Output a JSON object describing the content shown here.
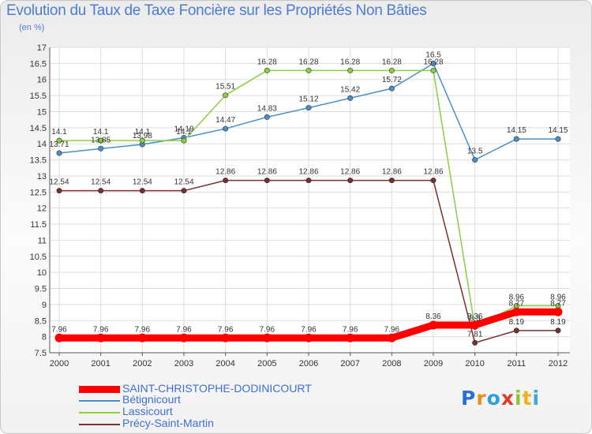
{
  "chart_data": {
    "type": "line",
    "title": "Evolution du Taux de Taxe Foncière sur les Propriétés Non Bâties",
    "subtitle": "(en %)",
    "categories": [
      "2000",
      "2001",
      "2002",
      "2003",
      "2004",
      "2005",
      "2006",
      "2007",
      "2008",
      "2009",
      "2010",
      "2011",
      "2012"
    ],
    "ylim": [
      7.5,
      17
    ],
    "yticks": [
      "7.5",
      "8",
      "8.5",
      "9",
      "9.5",
      "10",
      "10.5",
      "11",
      "11.5",
      "12",
      "12.5",
      "13",
      "13.5",
      "14",
      "14.5",
      "15",
      "15.5",
      "16",
      "16.5",
      "17"
    ],
    "series": [
      {
        "name": "SAINT-CHRISTOPHE-DODINICOURT",
        "color": "#ff0000",
        "values": [
          7.96,
          7.96,
          7.96,
          7.96,
          7.96,
          7.96,
          7.96,
          7.96,
          7.96,
          8.36,
          8.36,
          8.77,
          8.77
        ],
        "labels": [
          "7.96",
          "7.96",
          "7.96",
          "7.96",
          "7.96",
          "7.96",
          "7.96",
          "7.96",
          "7.96",
          "8.36",
          "8.36",
          "8.77",
          "8.77"
        ]
      },
      {
        "name": "Bétignicourt",
        "color": "#4a90c8",
        "values": [
          13.71,
          13.85,
          13.98,
          14.19,
          14.47,
          14.83,
          15.12,
          15.42,
          15.72,
          16.5,
          13.5,
          14.15,
          14.15
        ],
        "labels": [
          "13.71",
          "13.85",
          "13.98",
          "14.19",
          "14.47",
          "14.83",
          "15.12",
          "15.42",
          "15.72",
          "16.5",
          "13.5",
          "14.15",
          "14.15"
        ]
      },
      {
        "name": "Lassicourt",
        "color": "#88d040",
        "values": [
          14.1,
          14.1,
          14.1,
          14.1,
          15.51,
          16.28,
          16.28,
          16.28,
          16.28,
          16.28,
          8.3,
          8.96,
          8.96
        ],
        "labels": [
          "14.1",
          "14.1",
          "14.1",
          "14.1",
          "15.51",
          "16.28",
          "16.28",
          "16.28",
          "16.28",
          "16.28",
          "8.3",
          "8.96",
          "8.96"
        ]
      },
      {
        "name": "Précy-Saint-Martin",
        "color": "#7b2e2e",
        "values": [
          12.54,
          12.54,
          12.54,
          12.54,
          12.86,
          12.86,
          12.86,
          12.86,
          12.86,
          12.86,
          7.81,
          8.19,
          8.19
        ],
        "labels": [
          "12.54",
          "12.54",
          "12.54",
          "12.54",
          "12.86",
          "12.86",
          "12.86",
          "12.86",
          "12.86",
          "12.86",
          "7.81",
          "8.19",
          "8.19"
        ]
      }
    ],
    "legend_position": "bottom-left",
    "grid": true
  },
  "logo": {
    "letters": [
      "P",
      "r",
      "o",
      "x",
      "i",
      "t",
      "i"
    ],
    "colors": [
      "#2a6fd6",
      "#f08c1c",
      "#2aa0dc",
      "#e03a2a",
      "#8cc43a",
      "#f0b21c",
      "#36a8e0"
    ]
  }
}
